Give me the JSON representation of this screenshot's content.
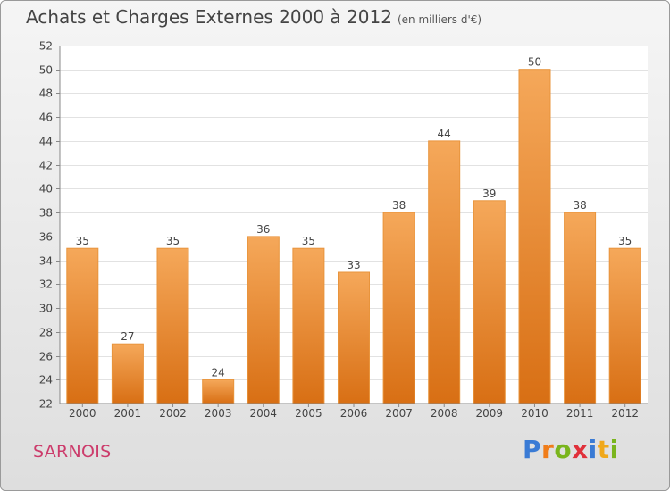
{
  "title": "Achats et Charges Externes 2000 à 2012",
  "unit_note": "(en milliers d'€)",
  "commune": "SARNOIS",
  "logo": {
    "letters": [
      "P",
      "r",
      "o",
      "x",
      "i",
      "t",
      "i"
    ],
    "colors": [
      "#3a7bd5",
      "#f07d1a",
      "#7ab51d",
      "#e0303a",
      "#3a7bd5",
      "#f0a81a",
      "#7ab51d"
    ]
  },
  "colors": {
    "bar_top": "#f5a85a",
    "bar_bottom": "#d86f14",
    "bar_stroke": "#e8943c"
  },
  "chart_data": {
    "type": "bar",
    "categories": [
      "2000",
      "2001",
      "2002",
      "2003",
      "2004",
      "2005",
      "2006",
      "2007",
      "2008",
      "2009",
      "2010",
      "2011",
      "2012"
    ],
    "values": [
      35,
      27,
      35,
      24,
      36,
      35,
      33,
      38,
      44,
      39,
      50,
      38,
      35
    ],
    "ylim": [
      22,
      52
    ],
    "yticks": [
      22,
      24,
      26,
      28,
      30,
      32,
      34,
      36,
      38,
      40,
      42,
      44,
      46,
      48,
      50,
      52
    ],
    "grid": true,
    "title": "Achats et Charges Externes 2000 à 2012",
    "xlabel": "",
    "ylabel": ""
  }
}
